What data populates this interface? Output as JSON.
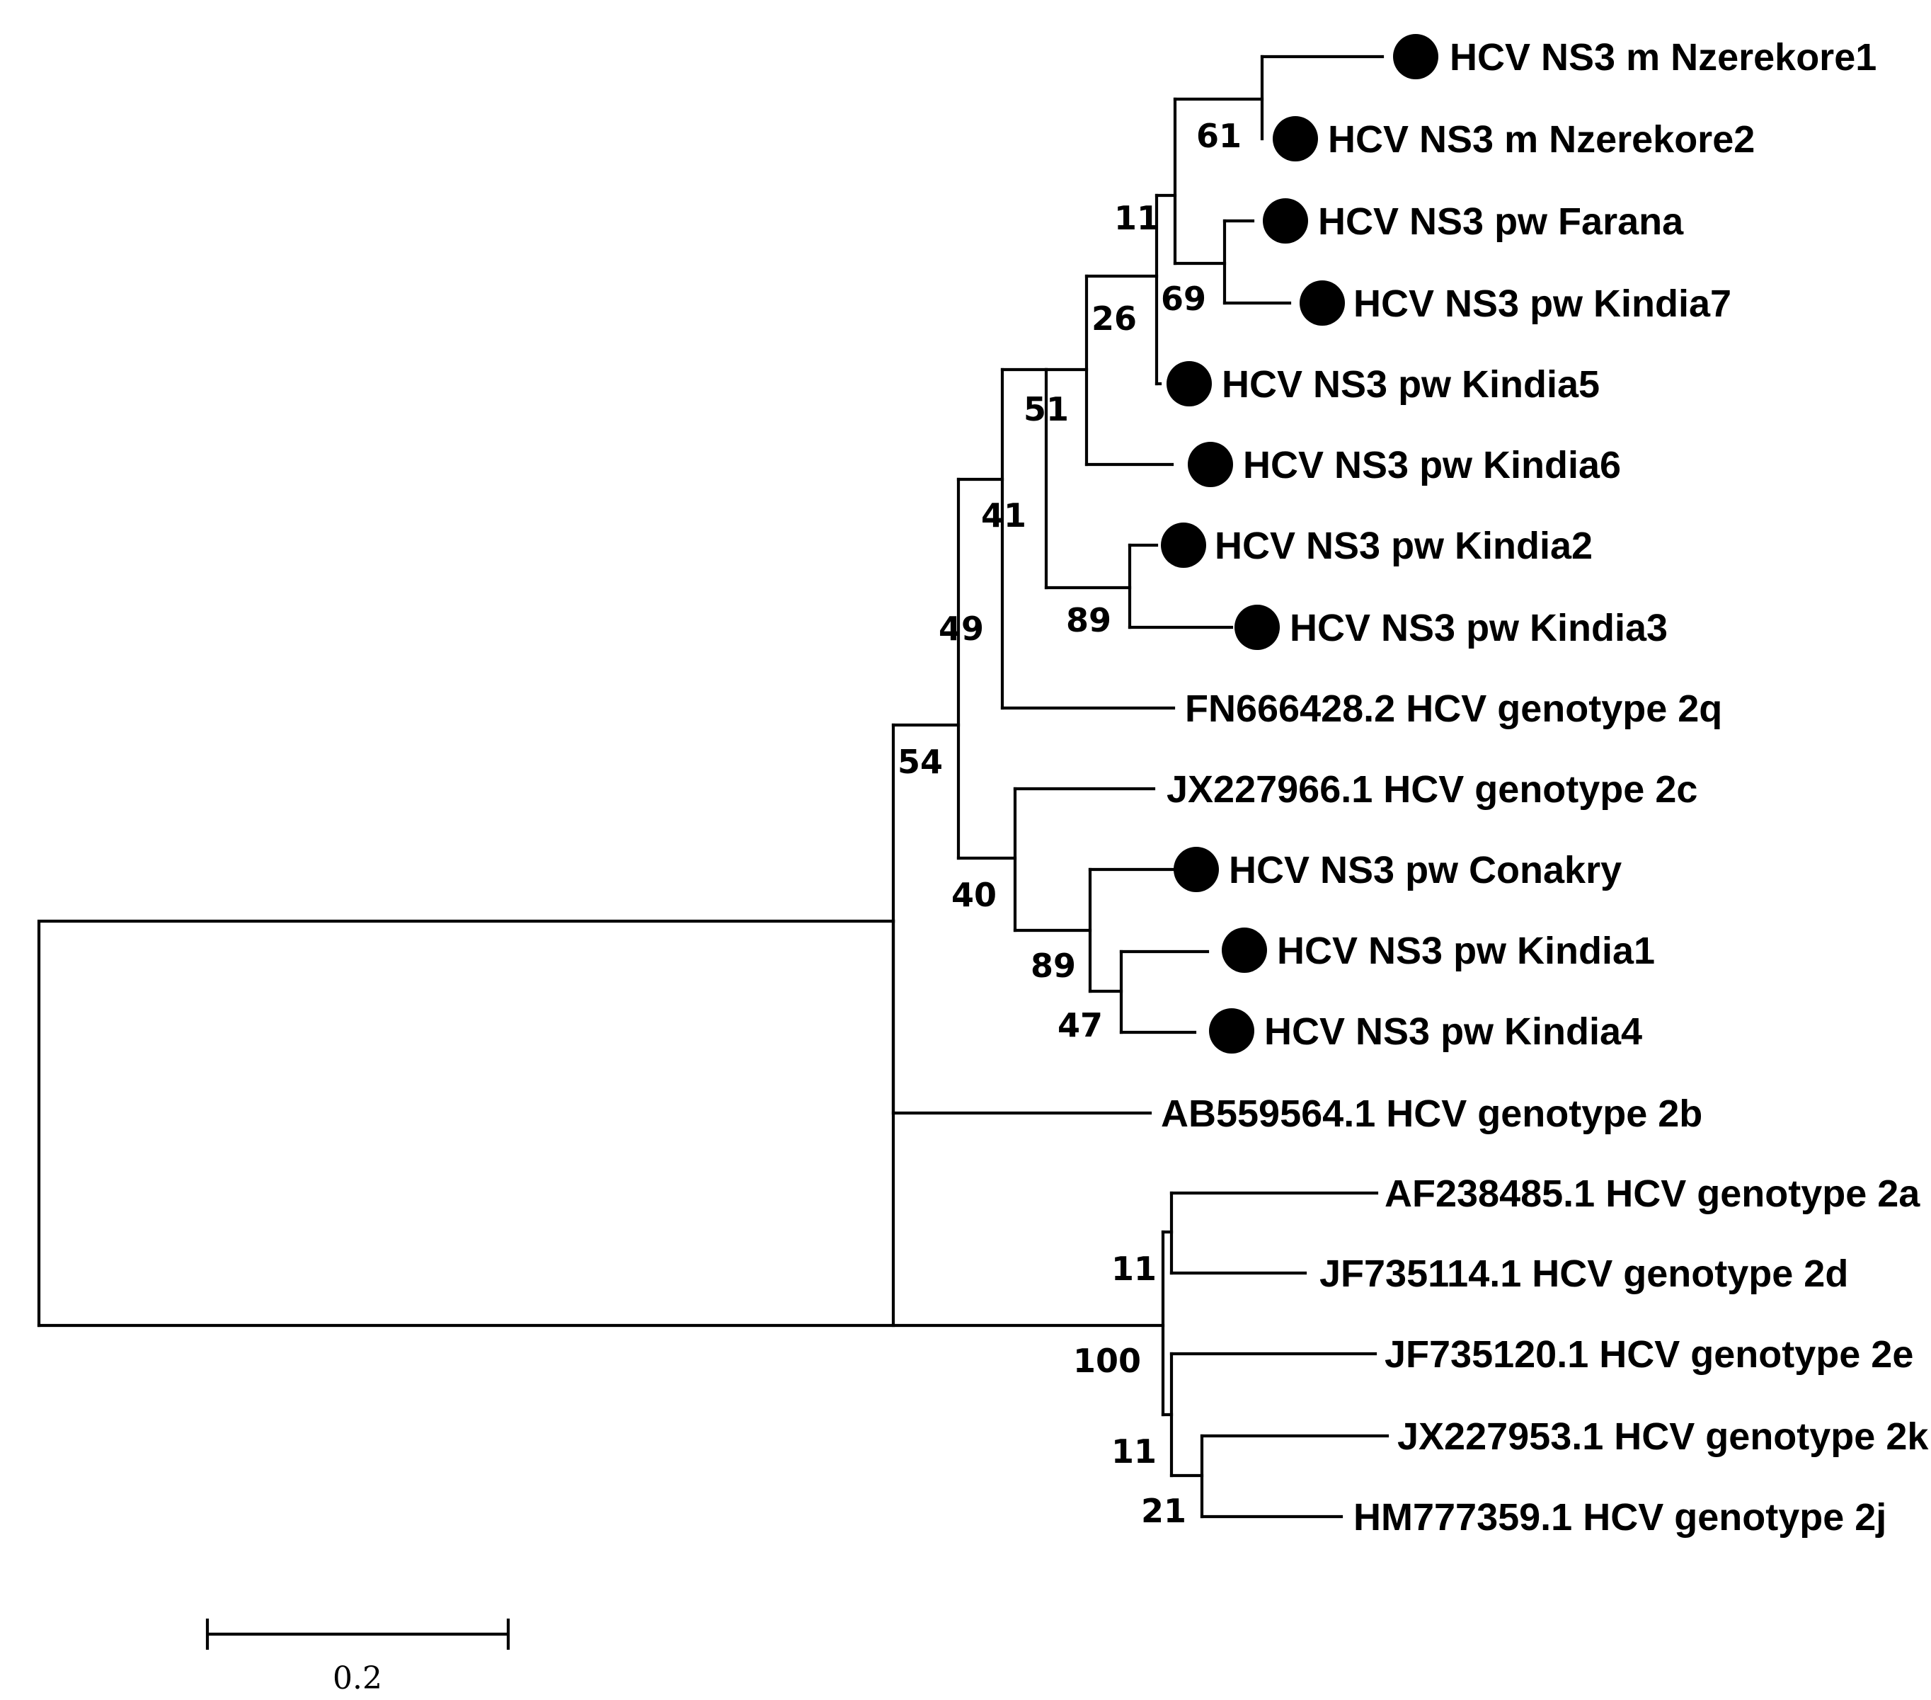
{
  "figure": {
    "leaves": [
      {
        "id": "nz1",
        "label": "HCV NS3 m Nzerekore1",
        "marked": true
      },
      {
        "id": "nz2",
        "label": "HCV NS3 m Nzerekore2",
        "marked": true
      },
      {
        "id": "farana",
        "label": "HCV NS3 pw Farana",
        "marked": true
      },
      {
        "id": "kin7",
        "label": "HCV NS3 pw Kindia7",
        "marked": true
      },
      {
        "id": "kin5",
        "label": "HCV NS3 pw Kindia5",
        "marked": true
      },
      {
        "id": "kin6",
        "label": "HCV NS3 pw Kindia6",
        "marked": true
      },
      {
        "id": "kin2",
        "label": "HCV NS3 pw Kindia2",
        "marked": true
      },
      {
        "id": "kin3",
        "label": "HCV NS3 pw Kindia3",
        "marked": true
      },
      {
        "id": "g2q",
        "label": "FN666428.2 HCV genotype 2q",
        "marked": false
      },
      {
        "id": "g2c",
        "label": "JX227966.1 HCV genotype 2c",
        "marked": false
      },
      {
        "id": "conakry",
        "label": "HCV NS3 pw Conakry",
        "marked": true
      },
      {
        "id": "kin1",
        "label": "HCV NS3 pw Kindia1",
        "marked": true
      },
      {
        "id": "kin4",
        "label": "HCV NS3 pw Kindia4",
        "marked": true
      },
      {
        "id": "g2b",
        "label": "AB559564.1 HCV genotype 2b",
        "marked": false
      },
      {
        "id": "g2a",
        "label": "AF238485.1 HCV genotype 2a",
        "marked": false
      },
      {
        "id": "g2d",
        "label": "JF735114.1 HCV genotype 2d",
        "marked": false
      },
      {
        "id": "g2e",
        "label": "JF735120.1 HCV genotype 2e",
        "marked": false
      },
      {
        "id": "g2k",
        "label": "JX227953.1 HCV genotype 2k",
        "marked": false
      },
      {
        "id": "g2j",
        "label": "HM777359.1 HCV genotype 2j",
        "marked": false
      }
    ],
    "bootstrap_values": [
      {
        "node": "nzerekore",
        "value": "61"
      },
      {
        "node": "farana-kindia7",
        "value": "69"
      },
      {
        "node": "nzerekore-farana",
        "value": "11"
      },
      {
        "node": "kindia5-group",
        "value": "26"
      },
      {
        "node": "kindia6-group",
        "value": "51"
      },
      {
        "node": "kindia2-kindia3",
        "value": "89"
      },
      {
        "node": "pw-group",
        "value": "41"
      },
      {
        "node": "2q-group",
        "value": "49"
      },
      {
        "node": "kindia1-kindia4",
        "value": "47"
      },
      {
        "node": "conakry-group",
        "value": "89"
      },
      {
        "node": "2c-group",
        "value": "40"
      },
      {
        "node": "main-clade",
        "value": "54"
      },
      {
        "node": "2a-2d",
        "value": "11"
      },
      {
        "node": "2k-2j",
        "value": "21"
      },
      {
        "node": "2e-group",
        "value": "11"
      },
      {
        "node": "outgroup-clade",
        "value": "100"
      }
    ],
    "scale_bar": {
      "value": 0.2,
      "label": "0.2"
    }
  }
}
